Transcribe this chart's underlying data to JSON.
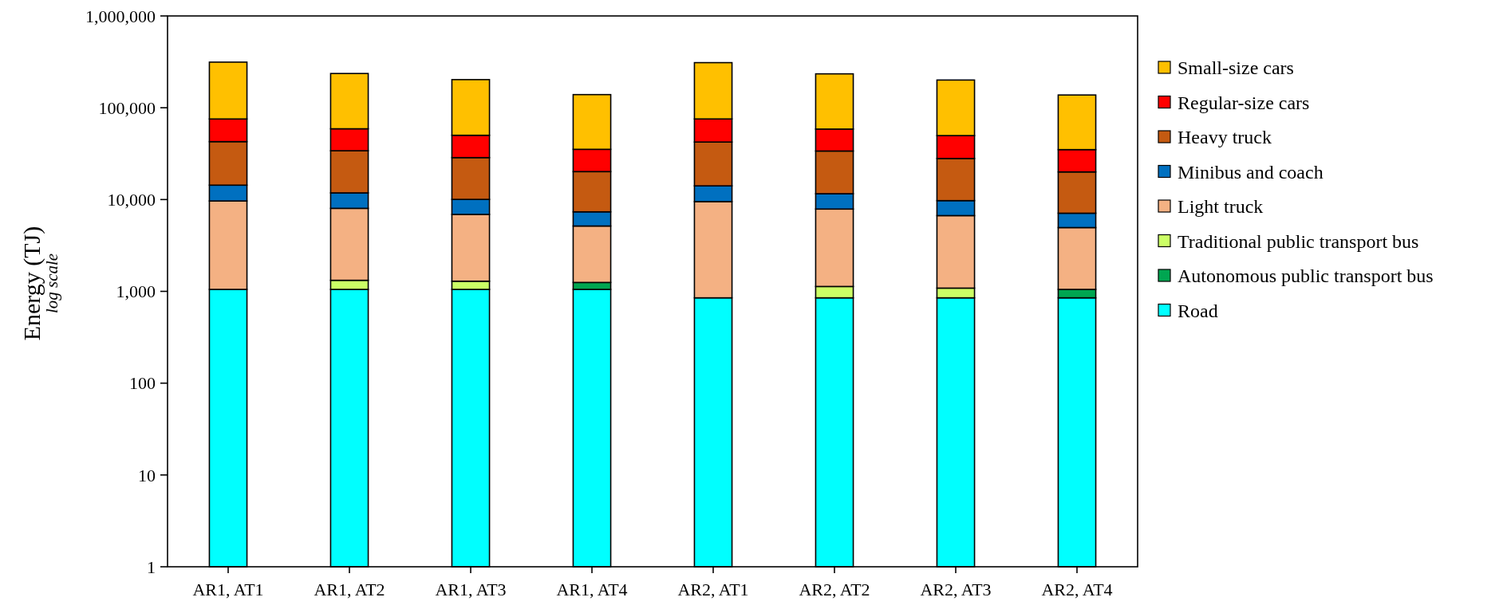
{
  "chart_data": {
    "type": "bar",
    "stacked": true,
    "log": "y",
    "ylabel": "Energy (TJ)",
    "annotations": [
      "log scale"
    ],
    "categories": [
      "AR1, AT1",
      "AR1, AT2",
      "AR1, AT3",
      "AR1, AT4",
      "AR2, AT1",
      "AR2, AT2",
      "AR2, AT3",
      "AR2, AT4"
    ],
    "ylim": [
      1,
      1000000
    ],
    "yticks": [
      {
        "value": 1,
        "label": "1"
      },
      {
        "value": 10,
        "label": "10"
      },
      {
        "value": 100,
        "label": "100"
      },
      {
        "value": 1000,
        "label": "1,000"
      },
      {
        "value": 10000,
        "label": "10,000"
      },
      {
        "value": 100000,
        "label": "100,000"
      },
      {
        "value": 1000000,
        "label": "1,000,000"
      }
    ],
    "grid": false,
    "legend": "right",
    "series": [
      {
        "name": "Road",
        "color": "#00ffff",
        "values": [
          1050,
          1050,
          1050,
          1050,
          850,
          850,
          850,
          850
        ]
      },
      {
        "name": "Autonomous public transport bus",
        "color": "#00a651",
        "values": [
          null,
          null,
          null,
          200,
          null,
          null,
          null,
          200
        ]
      },
      {
        "name": "Traditional public transport bus",
        "color": "#ccff66",
        "values": [
          null,
          270,
          240,
          null,
          null,
          280,
          235,
          null
        ]
      },
      {
        "name": "Light truck",
        "color": "#f4b183",
        "values": [
          8600,
          6700,
          5600,
          3900,
          8650,
          6750,
          5600,
          3900
        ]
      },
      {
        "name": "Minibus and coach",
        "color": "#0070c0",
        "values": [
          4700,
          3800,
          3150,
          2200,
          4600,
          3700,
          3050,
          2150
        ]
      },
      {
        "name": "Heavy truck",
        "color": "#c55a11",
        "values": [
          28400,
          22200,
          18600,
          12800,
          28200,
          22200,
          18300,
          12900
        ]
      },
      {
        "name": "Regular-size cars",
        "color": "#ff0000",
        "values": [
          32700,
          25000,
          21500,
          15100,
          33200,
          24800,
          21700,
          15000
        ]
      },
      {
        "name": "Small-size cars",
        "color": "#ffc000",
        "values": [
          238500,
          177000,
          152400,
          103800,
          234500,
          175400,
          150700,
          102700
        ]
      }
    ]
  }
}
